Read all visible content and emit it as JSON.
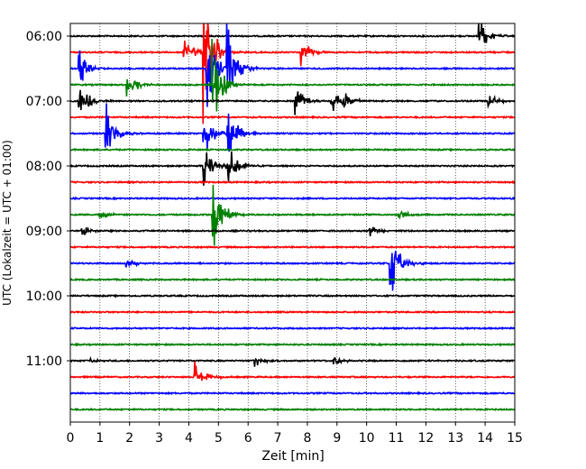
{
  "chart_data": {
    "type": "line",
    "xlabel": "Zeit  [min]",
    "ylabel": "UTC (Lokalzeit = UTC + 01:00)",
    "xlim": [
      0,
      15
    ],
    "xticks": [
      0,
      1,
      2,
      3,
      4,
      5,
      6,
      7,
      8,
      9,
      10,
      11,
      12,
      13,
      14,
      15
    ],
    "ylim_hours": [
      6.0,
      11.9
    ],
    "yticks": [
      {
        "hour": 6,
        "label": "06:00"
      },
      {
        "hour": 7,
        "label": "07:00"
      },
      {
        "hour": 8,
        "label": "08:00"
      },
      {
        "hour": 9,
        "label": "09:00"
      },
      {
        "hour": 10,
        "label": "10:00"
      },
      {
        "hour": 11,
        "label": "11:00"
      }
    ],
    "grid": "vertical-dotted",
    "trace_interval_min": 15,
    "trace_count": 24,
    "trace_colors": [
      "#000000",
      "#ff0000",
      "#0000ff",
      "#008000"
    ],
    "events": [
      {
        "trace": 0,
        "t": 13.8,
        "amp": 1.0
      },
      {
        "trace": 1,
        "t": 3.8,
        "amp": 1.5
      },
      {
        "trace": 1,
        "t": 4.5,
        "amp": 5
      },
      {
        "trace": 1,
        "t": 7.8,
        "amp": 0.9
      },
      {
        "trace": 2,
        "t": 0.3,
        "amp": 1.2
      },
      {
        "trace": 2,
        "t": 4.6,
        "amp": 3
      },
      {
        "trace": 2,
        "t": 5.3,
        "amp": 3
      },
      {
        "trace": 3,
        "t": 1.9,
        "amp": 1.3
      },
      {
        "trace": 3,
        "t": 4.8,
        "amp": 3
      },
      {
        "trace": 4,
        "t": 0.3,
        "amp": 1.6
      },
      {
        "trace": 4,
        "t": 7.6,
        "amp": 1.0
      },
      {
        "trace": 4,
        "t": 8.8,
        "amp": 0.9
      },
      {
        "trace": 4,
        "t": 9.2,
        "amp": 0.7
      },
      {
        "trace": 4,
        "t": 14.1,
        "amp": 0.5
      },
      {
        "trace": 6,
        "t": 1.2,
        "amp": 2.0
      },
      {
        "trace": 6,
        "t": 4.5,
        "amp": 2.0
      },
      {
        "trace": 6,
        "t": 5.3,
        "amp": 2.2
      },
      {
        "trace": 8,
        "t": 4.5,
        "amp": 1.5
      },
      {
        "trace": 8,
        "t": 5.3,
        "amp": 1.5
      },
      {
        "trace": 11,
        "t": 1.0,
        "amp": 0.4
      },
      {
        "trace": 11,
        "t": 4.8,
        "amp": 2.8
      },
      {
        "trace": 11,
        "t": 11.1,
        "amp": 0.4
      },
      {
        "trace": 12,
        "t": 0.4,
        "amp": 0.4
      },
      {
        "trace": 12,
        "t": 10.1,
        "amp": 0.5
      },
      {
        "trace": 14,
        "t": 1.9,
        "amp": 0.3
      },
      {
        "trace": 14,
        "t": 10.8,
        "amp": 2.5
      },
      {
        "trace": 21,
        "t": 4.2,
        "amp": 1.3
      },
      {
        "trace": 20,
        "t": 6.2,
        "amp": 0.4
      },
      {
        "trace": 20,
        "t": 8.9,
        "amp": 0.3
      },
      {
        "trace": 20,
        "t": 0.7,
        "amp": 0.2
      }
    ]
  }
}
